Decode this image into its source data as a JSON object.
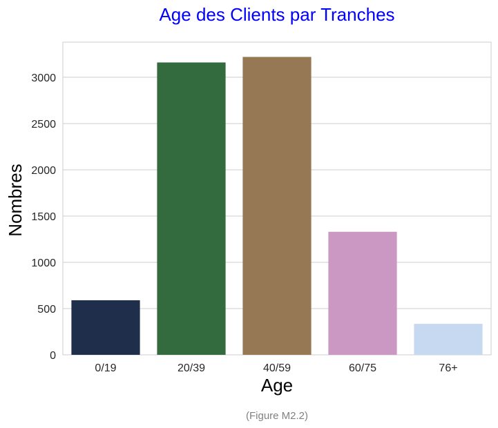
{
  "chart_data": {
    "type": "bar",
    "title": "Age des Clients par Tranches",
    "xlabel": "Age",
    "ylabel": "Nombres",
    "categories": [
      "0/19",
      "20/39",
      "40/59",
      "60/75",
      "76+"
    ],
    "values": [
      590,
      3160,
      3220,
      1330,
      335
    ],
    "colors": [
      "#1f2f4b",
      "#336b3f",
      "#967855",
      "#cb97c3",
      "#c7d9f0"
    ],
    "ylim": [
      0,
      3380
    ],
    "yticks": [
      0,
      500,
      1000,
      1500,
      2000,
      2500,
      3000
    ],
    "grid": "horizontal",
    "legend": "none"
  },
  "caption": "(Figure M2.2)",
  "style": {
    "title_color": "#0000ff",
    "grid_color": "#cccccc",
    "spine_color": "#cccccc",
    "background": "#ffffff"
  }
}
